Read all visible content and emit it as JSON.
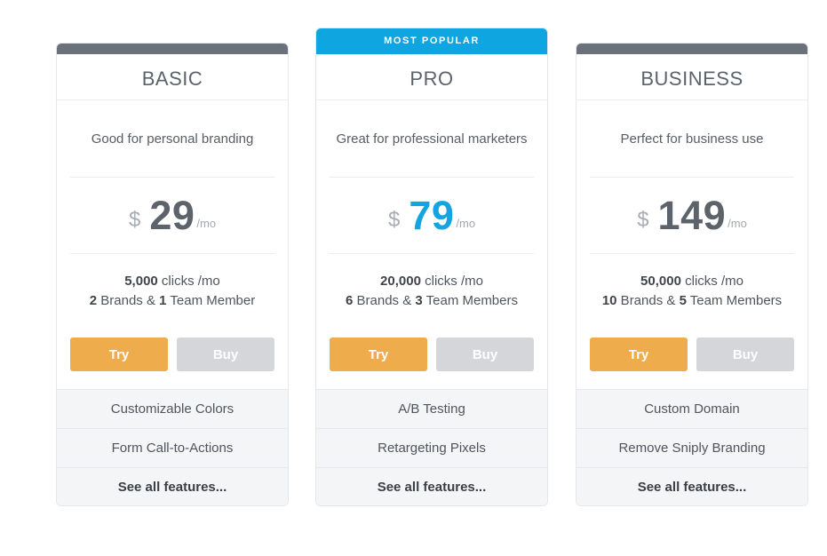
{
  "plans": [
    {
      "name": "BASIC",
      "tagline": "Good for personal branding",
      "currency": "$",
      "price": "29",
      "per": "/mo",
      "clicks_num": "5,000",
      "clicks_text": " clicks /mo",
      "brands_num": "2",
      "brands_text": " Brands & ",
      "members_num": "1",
      "members_text": " Team Member",
      "try_label": "Try",
      "buy_label": "Buy",
      "features": [
        "Customizable Colors",
        "Form Call-to-Actions"
      ],
      "see_all": "See all features..."
    },
    {
      "badge": "MOST POPULAR",
      "name": "PRO",
      "tagline": "Great for professional marketers",
      "currency": "$",
      "price": "79",
      "per": "/mo",
      "clicks_num": "20,000",
      "clicks_text": " clicks /mo",
      "brands_num": "6",
      "brands_text": " Brands & ",
      "members_num": "3",
      "members_text": " Team Members",
      "try_label": "Try",
      "buy_label": "Buy",
      "features": [
        "A/B Testing",
        "Retargeting Pixels"
      ],
      "see_all": "See all features..."
    },
    {
      "name": "BUSINESS",
      "tagline": "Perfect for business use",
      "currency": "$",
      "price": "149",
      "per": "/mo",
      "clicks_num": "50,000",
      "clicks_text": " clicks /mo",
      "brands_num": "10",
      "brands_text": " Brands & ",
      "members_num": "5",
      "members_text": " Team Members",
      "try_label": "Try",
      "buy_label": "Buy",
      "features": [
        "Custom Domain",
        "Remove Sniply Branding"
      ],
      "see_all": "See all features..."
    }
  ],
  "colors": {
    "accent_blue": "#12a5e0",
    "try_orange": "#efac4d",
    "buy_gray": "#d4d6da",
    "top_bar": "#6b717a"
  }
}
